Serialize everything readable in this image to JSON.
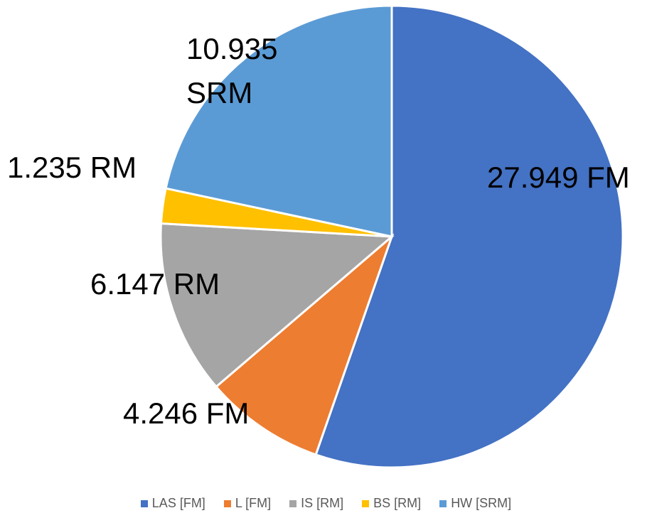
{
  "chart_data": {
    "type": "pie",
    "categories": [
      "LAS [FM]",
      "L [FM]",
      "IS [RM]",
      "BS [RM]",
      "HW [SRM]"
    ],
    "values": [
      27.949,
      4.246,
      6.147,
      1.235,
      10.935
    ],
    "value_labels": [
      "27.949 FM",
      "4.246 FM",
      "6.147 RM",
      "1.235 RM",
      "10.935 SRM"
    ],
    "colors": [
      "#4472c4",
      "#ed7d31",
      "#a5a5a5",
      "#ffc000",
      "#5b9bd5"
    ],
    "legend": "bottom"
  }
}
